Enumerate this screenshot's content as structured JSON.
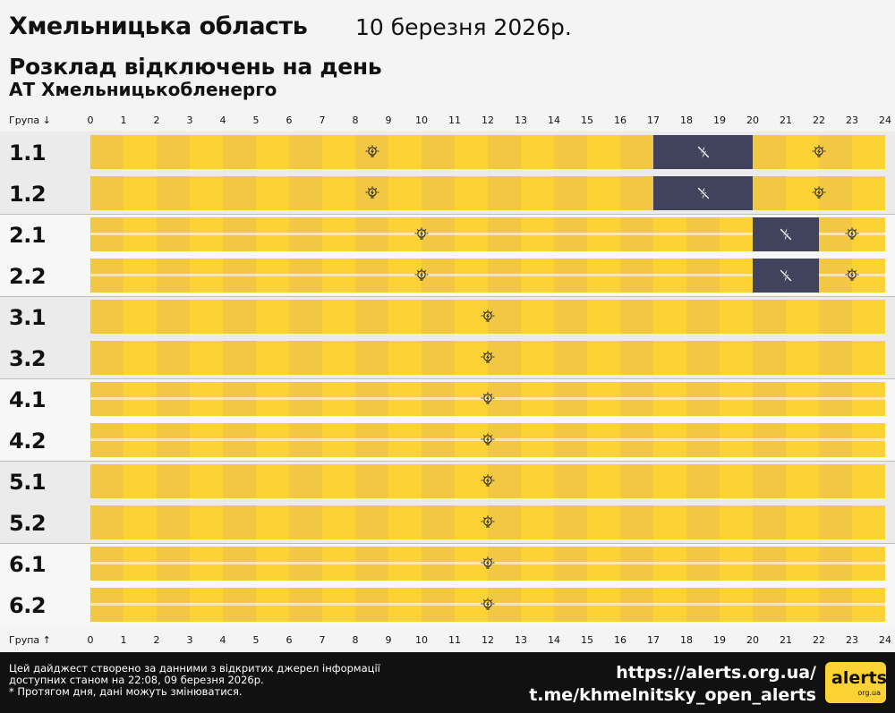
{
  "header": {
    "region": "Хмельницька область",
    "date": "10 березня 2026р.",
    "subtitle": "Розклад відключень на день",
    "company": "АТ Хмельницькобленерго"
  },
  "axis": {
    "top_label": "Група ↓",
    "bottom_label": "Група ↑",
    "hours": [
      "0",
      "1",
      "2",
      "3",
      "4",
      "5",
      "6",
      "7",
      "8",
      "9",
      "10",
      "11",
      "12",
      "13",
      "14",
      "15",
      "16",
      "17",
      "18",
      "19",
      "20",
      "21",
      "22",
      "23",
      "24"
    ]
  },
  "chart_data": {
    "type": "table",
    "hours_range": [
      0,
      24
    ],
    "colors": {
      "power_on_dark": "#f2c744",
      "power_on_light": "#fdd235",
      "power_off": "#41435c"
    },
    "groups": [
      {
        "name": "1.1",
        "outages": [
          [
            17,
            20
          ]
        ]
      },
      {
        "name": "1.2",
        "outages": [
          [
            17,
            20
          ]
        ]
      },
      {
        "name": "2.1",
        "outages": [
          [
            20,
            22
          ]
        ]
      },
      {
        "name": "2.2",
        "outages": [
          [
            20,
            22
          ]
        ]
      },
      {
        "name": "3.1",
        "outages": []
      },
      {
        "name": "3.2",
        "outages": []
      },
      {
        "name": "4.1",
        "outages": []
      },
      {
        "name": "4.2",
        "outages": []
      },
      {
        "name": "5.1",
        "outages": []
      },
      {
        "name": "5.2",
        "outages": []
      },
      {
        "name": "6.1",
        "outages": []
      },
      {
        "name": "6.2",
        "outages": []
      }
    ]
  },
  "footer": {
    "note_line1": "Цей дайджест створено за данними з відкритих джерел інформації",
    "note_line2": "доступних станом на 22:08, 09 березня 2026р.",
    "note_line3": "* Протягом дня, дані можуть змінюватися.",
    "link_site": "https://alerts.org.ua/",
    "link_telegram": "t.me/khmelnitsky_open_alerts",
    "logo_text": "alerts",
    "logo_sub": "org.ua"
  },
  "icons": {
    "power_on": "lightbulb-icon",
    "power_off": "power-off-icon"
  }
}
